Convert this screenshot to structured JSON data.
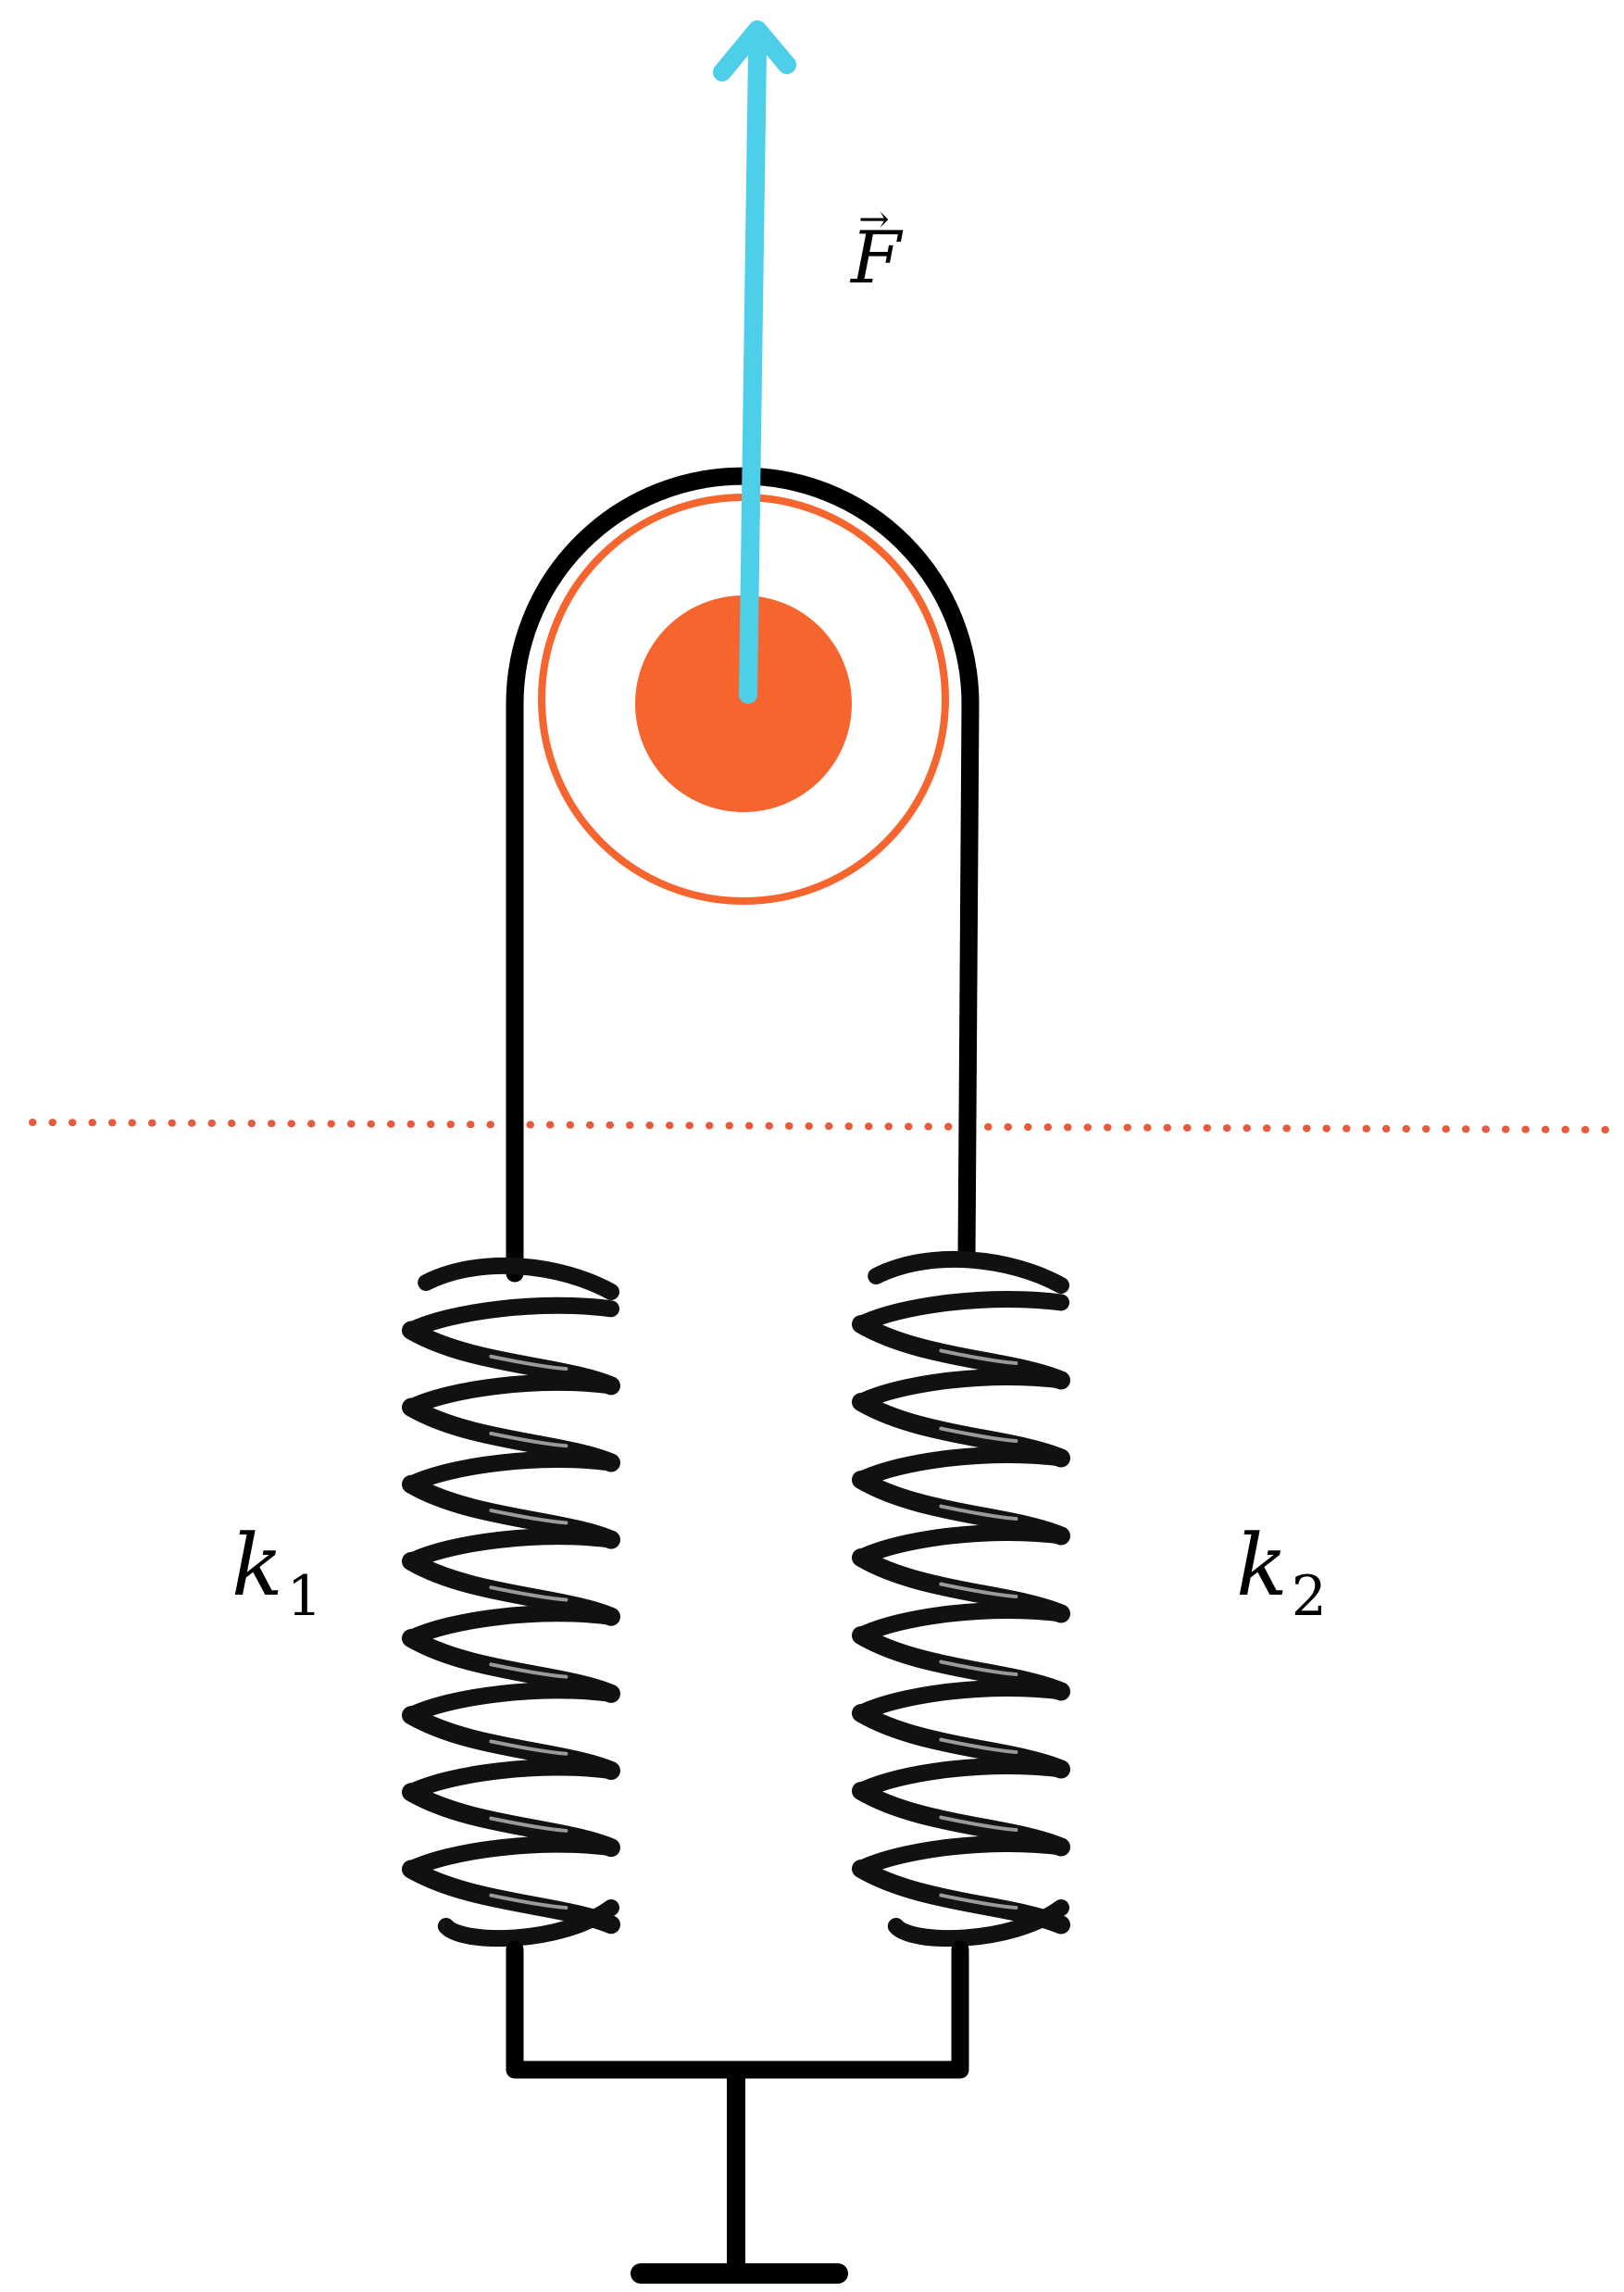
{
  "labels": {
    "force": "F",
    "force_arrow": "→",
    "spring_left": "k",
    "spring_left_sub": "1",
    "spring_right": "k",
    "spring_right_sub": "2"
  },
  "colors": {
    "force_arrow": "#4DCFEA",
    "pulley": "#F7652F",
    "reference_line": "#E85A3C",
    "rope": "#000000",
    "spring": "#111111",
    "spring_highlight": "#bdbdbd"
  },
  "icons": {
    "ground": "ground-symbol",
    "pulley": "pulley-icon"
  }
}
